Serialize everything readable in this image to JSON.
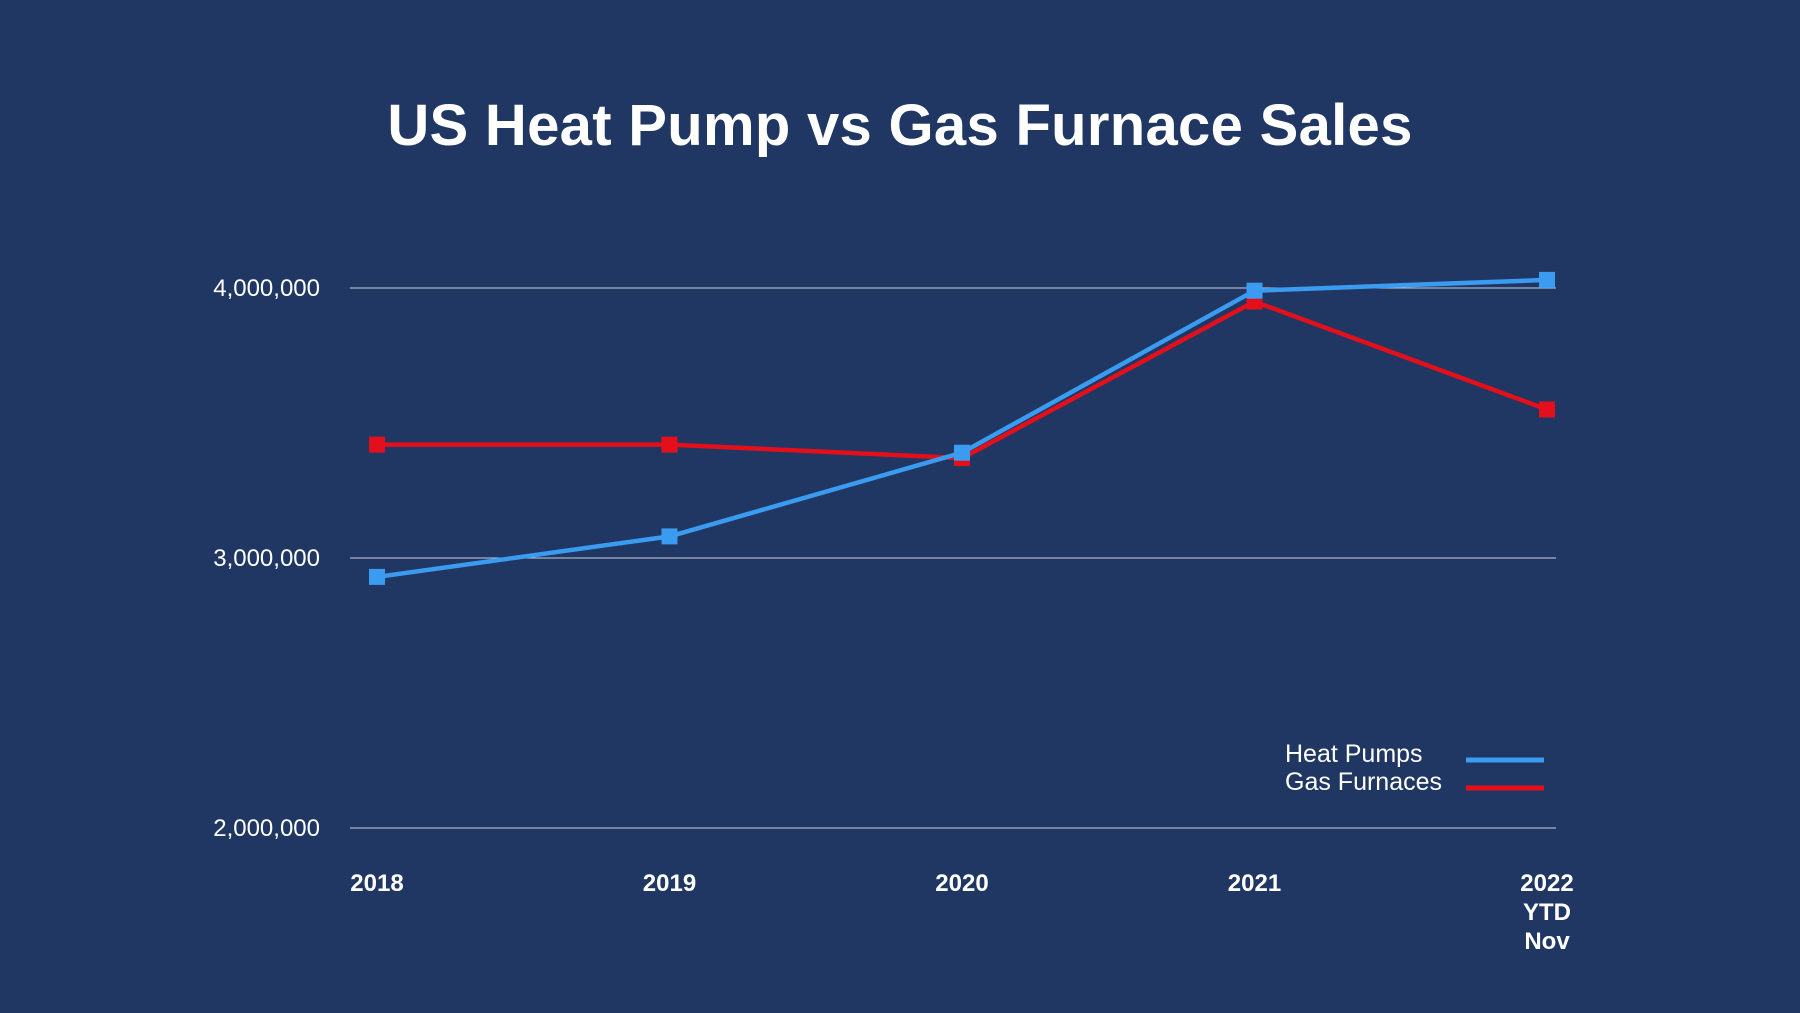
{
  "chart_data": {
    "type": "line",
    "title": "US Heat Pump vs Gas Furnace Sales",
    "categories": [
      [
        "2018"
      ],
      [
        "2019"
      ],
      [
        "2020"
      ],
      [
        "2021"
      ],
      [
        "2022",
        "YTD",
        "Nov"
      ]
    ],
    "ylim": [
      2000000,
      4000000
    ],
    "yticks": [
      {
        "value": 2000000,
        "label": "2,000,000"
      },
      {
        "value": 3000000,
        "label": "3,000,000"
      },
      {
        "value": 4000000,
        "label": "4,000,000"
      }
    ],
    "grid": true,
    "legend_position": "bottom-right",
    "series": [
      {
        "name": "Heat Pumps",
        "color": "#3a9bf0",
        "values": [
          2930000,
          3080000,
          3390000,
          3990000,
          4030000
        ]
      },
      {
        "name": "Gas Furnaces",
        "color": "#e3101b",
        "values": [
          3420000,
          3420000,
          3370000,
          3950000,
          3550000
        ]
      }
    ]
  }
}
